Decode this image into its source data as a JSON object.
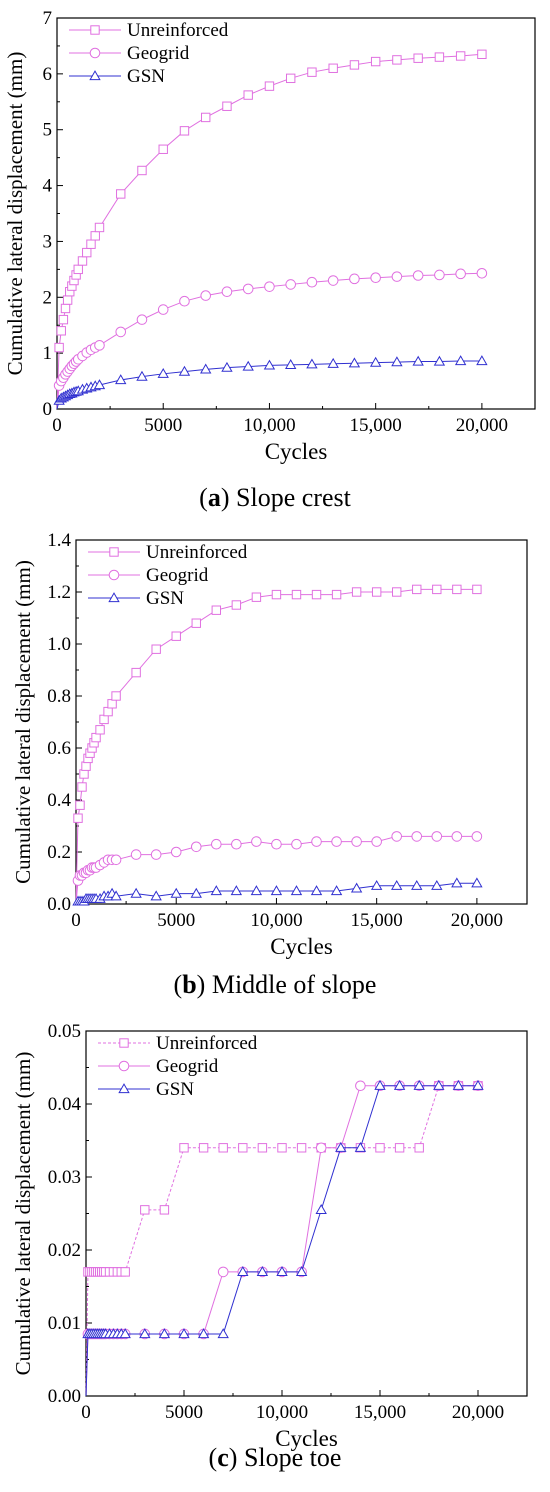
{
  "chart_data": [
    {
      "type": "line",
      "caption_letter": "a",
      "caption_text": "Slope crest",
      "xlabel": "Cycles",
      "ylabel": "Cumulative lateral displacement (mm)",
      "xlim": [
        0,
        22500
      ],
      "ylim": [
        0,
        7
      ],
      "xticks": [
        0,
        5000,
        10000,
        15000,
        20000
      ],
      "xtick_labels": [
        "0",
        "5000",
        "10,000",
        "15,000",
        "20,000"
      ],
      "yticks": [
        0,
        1,
        2,
        3,
        4,
        5,
        6,
        7
      ],
      "ytick_labels": [
        "0",
        "1",
        "2",
        "3",
        "4",
        "5",
        "6",
        "7"
      ],
      "legend_position": "top-left",
      "series": [
        {
          "name": "Unreinforced",
          "marker": "square",
          "color": "#e070e0",
          "x": [
            0,
            100,
            200,
            300,
            400,
            500,
            600,
            700,
            800,
            900,
            1000,
            1200,
            1400,
            1600,
            1800,
            2000,
            3000,
            4000,
            5000,
            6000,
            7000,
            8000,
            9000,
            10000,
            11000,
            12000,
            13000,
            14000,
            15000,
            16000,
            17000,
            18000,
            19000,
            20000
          ],
          "y": [
            0,
            1.1,
            1.4,
            1.6,
            1.8,
            1.95,
            2.1,
            2.2,
            2.3,
            2.4,
            2.5,
            2.65,
            2.8,
            2.95,
            3.1,
            3.25,
            3.85,
            4.27,
            4.65,
            4.98,
            5.22,
            5.42,
            5.62,
            5.78,
            5.92,
            6.03,
            6.1,
            6.16,
            6.22,
            6.25,
            6.28,
            6.3,
            6.32,
            6.35
          ]
        },
        {
          "name": "Geogrid",
          "marker": "circle",
          "color": "#e070e0",
          "x": [
            0,
            100,
            200,
            300,
            400,
            500,
            600,
            700,
            800,
            900,
            1000,
            1200,
            1400,
            1600,
            1800,
            2000,
            3000,
            4000,
            5000,
            6000,
            7000,
            8000,
            9000,
            10000,
            11000,
            12000,
            13000,
            14000,
            15000,
            16000,
            17000,
            18000,
            19000,
            20000
          ],
          "y": [
            0,
            0.42,
            0.5,
            0.56,
            0.62,
            0.67,
            0.72,
            0.77,
            0.81,
            0.85,
            0.89,
            0.95,
            1.01,
            1.06,
            1.1,
            1.14,
            1.38,
            1.6,
            1.78,
            1.93,
            2.03,
            2.1,
            2.15,
            2.19,
            2.23,
            2.27,
            2.3,
            2.33,
            2.35,
            2.37,
            2.39,
            2.4,
            2.42,
            2.43
          ]
        },
        {
          "name": "GSN",
          "marker": "triangle",
          "color": "#3030d0",
          "x": [
            0,
            100,
            200,
            300,
            400,
            500,
            600,
            700,
            800,
            900,
            1000,
            1200,
            1400,
            1600,
            1800,
            2000,
            3000,
            4000,
            5000,
            6000,
            7000,
            8000,
            9000,
            10000,
            11000,
            12000,
            13000,
            14000,
            15000,
            16000,
            17000,
            18000,
            19000,
            20000
          ],
          "y": [
            0,
            0.15,
            0.19,
            0.21,
            0.23,
            0.25,
            0.27,
            0.28,
            0.3,
            0.31,
            0.32,
            0.35,
            0.37,
            0.39,
            0.41,
            0.43,
            0.52,
            0.58,
            0.63,
            0.67,
            0.71,
            0.74,
            0.76,
            0.78,
            0.79,
            0.8,
            0.81,
            0.82,
            0.83,
            0.84,
            0.85,
            0.85,
            0.86,
            0.86
          ]
        }
      ]
    },
    {
      "type": "line",
      "caption_letter": "b",
      "caption_text": "Middle of slope",
      "xlabel": "Cycles",
      "ylabel": "Cumulative lateral displacement (mm)",
      "xlim": [
        0,
        22500
      ],
      "ylim": [
        0,
        1.4
      ],
      "xticks": [
        0,
        5000,
        10000,
        15000,
        20000
      ],
      "xtick_labels": [
        "0",
        "5000",
        "10,000",
        "15,000",
        "20,000"
      ],
      "yticks": [
        0,
        0.2,
        0.4,
        0.6,
        0.8,
        1.0,
        1.2,
        1.4
      ],
      "ytick_labels": [
        "0.0",
        "0.2",
        "0.4",
        "0.6",
        "0.8",
        "1.0",
        "1.2",
        "1.4"
      ],
      "legend_position": "top-left",
      "series": [
        {
          "name": "Unreinforced",
          "marker": "square",
          "color": "#e070e0",
          "x": [
            0,
            100,
            200,
            300,
            400,
            500,
            600,
            700,
            800,
            900,
            1000,
            1200,
            1400,
            1600,
            1800,
            2000,
            3000,
            4000,
            5000,
            6000,
            7000,
            8000,
            9000,
            10000,
            11000,
            12000,
            13000,
            14000,
            15000,
            16000,
            17000,
            18000,
            19000,
            20000
          ],
          "y": [
            0,
            0.33,
            0.38,
            0.45,
            0.5,
            0.53,
            0.56,
            0.58,
            0.6,
            0.62,
            0.64,
            0.67,
            0.71,
            0.74,
            0.77,
            0.8,
            0.89,
            0.98,
            1.03,
            1.08,
            1.13,
            1.15,
            1.18,
            1.19,
            1.19,
            1.19,
            1.19,
            1.2,
            1.2,
            1.2,
            1.21,
            1.21,
            1.21,
            1.21
          ]
        },
        {
          "name": "Geogrid",
          "marker": "circle",
          "color": "#e070e0",
          "x": [
            0,
            100,
            200,
            300,
            400,
            500,
            600,
            700,
            800,
            900,
            1000,
            1200,
            1400,
            1600,
            1800,
            2000,
            3000,
            4000,
            5000,
            6000,
            7000,
            8000,
            9000,
            10000,
            11000,
            12000,
            13000,
            14000,
            15000,
            16000,
            17000,
            18000,
            19000,
            20000
          ],
          "y": [
            0,
            0.09,
            0.11,
            0.11,
            0.12,
            0.12,
            0.13,
            0.13,
            0.14,
            0.14,
            0.14,
            0.15,
            0.16,
            0.17,
            0.17,
            0.17,
            0.19,
            0.19,
            0.2,
            0.22,
            0.23,
            0.23,
            0.24,
            0.23,
            0.23,
            0.24,
            0.24,
            0.24,
            0.24,
            0.26,
            0.26,
            0.26,
            0.26,
            0.26
          ]
        },
        {
          "name": "GSN",
          "marker": "triangle",
          "color": "#3030d0",
          "x": [
            0,
            100,
            200,
            300,
            400,
            500,
            600,
            700,
            800,
            900,
            1000,
            1200,
            1400,
            1600,
            1800,
            2000,
            3000,
            4000,
            5000,
            6000,
            7000,
            8000,
            9000,
            10000,
            11000,
            12000,
            13000,
            14000,
            15000,
            16000,
            17000,
            18000,
            19000,
            20000
          ],
          "y": [
            0,
            0.01,
            0.01,
            0.01,
            0.01,
            0.02,
            0.02,
            0.02,
            0.02,
            0.02,
            0.02,
            0.02,
            0.03,
            0.03,
            0.04,
            0.03,
            0.04,
            0.03,
            0.04,
            0.04,
            0.05,
            0.05,
            0.05,
            0.05,
            0.05,
            0.05,
            0.05,
            0.06,
            0.07,
            0.07,
            0.07,
            0.07,
            0.08,
            0.08
          ]
        }
      ]
    },
    {
      "type": "line",
      "caption_letter": "c",
      "caption_text": "Slope toe",
      "xlabel": "Cycles",
      "ylabel": "Cumulative lateral displacement (mm)",
      "xlim": [
        0,
        22500
      ],
      "ylim": [
        0,
        0.05
      ],
      "xticks": [
        0,
        5000,
        10000,
        15000,
        20000
      ],
      "xtick_labels": [
        "0",
        "5000",
        "10,000",
        "15,000",
        "20,000"
      ],
      "yticks": [
        0,
        0.01,
        0.02,
        0.03,
        0.04,
        0.05
      ],
      "ytick_labels": [
        "0.00",
        "0.01",
        "0.02",
        "0.03",
        "0.04",
        "0.05"
      ],
      "legend_position": "top-left",
      "series": [
        {
          "name": "Unreinforced",
          "marker": "square",
          "color": "#e070e0",
          "dashed": true,
          "x": [
            0,
            100,
            200,
            300,
            400,
            500,
            600,
            700,
            800,
            900,
            1000,
            1200,
            1400,
            1600,
            1800,
            2000,
            3000,
            4000,
            5000,
            6000,
            7000,
            8000,
            9000,
            10000,
            11000,
            12000,
            13000,
            14000,
            15000,
            16000,
            17000,
            18000,
            19000,
            20000
          ],
          "y": [
            0,
            0.017,
            0.017,
            0.017,
            0.017,
            0.017,
            0.017,
            0.017,
            0.017,
            0.017,
            0.017,
            0.017,
            0.017,
            0.017,
            0.017,
            0.017,
            0.0255,
            0.0255,
            0.034,
            0.034,
            0.034,
            0.034,
            0.034,
            0.034,
            0.034,
            0.034,
            0.034,
            0.034,
            0.034,
            0.034,
            0.034,
            0.0425,
            0.0425,
            0.0425
          ]
        },
        {
          "name": "Geogrid",
          "marker": "circle",
          "color": "#e070e0",
          "x": [
            0,
            100,
            200,
            300,
            400,
            500,
            600,
            700,
            800,
            900,
            1000,
            1200,
            1400,
            1600,
            1800,
            2000,
            3000,
            4000,
            5000,
            6000,
            7000,
            8000,
            9000,
            10000,
            11000,
            12000,
            13000,
            14000,
            15000,
            16000,
            17000,
            18000,
            19000,
            20000
          ],
          "y": [
            0,
            0.0085,
            0.0085,
            0.0085,
            0.0085,
            0.0085,
            0.0085,
            0.0085,
            0.0085,
            0.0085,
            0.0085,
            0.0085,
            0.0085,
            0.0085,
            0.0085,
            0.0085,
            0.0085,
            0.0085,
            0.0085,
            0.0085,
            0.017,
            0.017,
            0.017,
            0.017,
            0.017,
            0.034,
            0.034,
            0.0425,
            0.0425,
            0.0425,
            0.0425,
            0.0425,
            0.0425,
            0.0425
          ]
        },
        {
          "name": "GSN",
          "marker": "triangle",
          "color": "#3030d0",
          "x": [
            0,
            100,
            200,
            300,
            400,
            500,
            600,
            700,
            800,
            900,
            1000,
            1200,
            1400,
            1600,
            1800,
            2000,
            3000,
            4000,
            5000,
            6000,
            7000,
            8000,
            9000,
            10000,
            11000,
            12000,
            13000,
            14000,
            15000,
            16000,
            17000,
            18000,
            19000,
            20000
          ],
          "y": [
            0,
            0.0085,
            0.0085,
            0.0085,
            0.0085,
            0.0085,
            0.0085,
            0.0085,
            0.0085,
            0.0085,
            0.0085,
            0.0085,
            0.0085,
            0.0085,
            0.0085,
            0.0085,
            0.0085,
            0.0085,
            0.0085,
            0.0085,
            0.0085,
            0.017,
            0.017,
            0.017,
            0.017,
            0.0255,
            0.034,
            0.034,
            0.0425,
            0.0425,
            0.0425,
            0.0425,
            0.0425,
            0.0425
          ]
        }
      ]
    }
  ]
}
